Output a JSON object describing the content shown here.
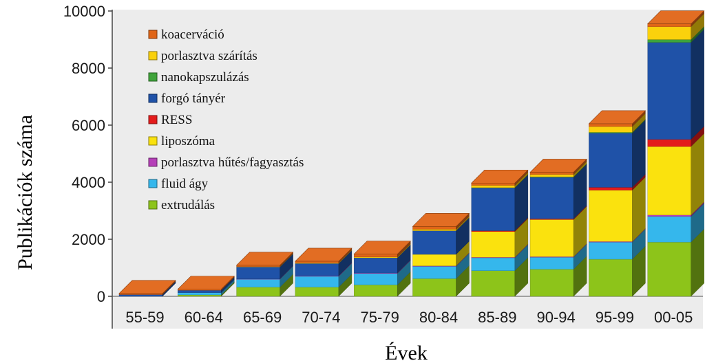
{
  "chart_data": {
    "type": "bar",
    "stacked": true,
    "style": "3d",
    "title": "",
    "xlabel": "Évek",
    "ylabel": "Publikációk száma",
    "ylim": [
      0,
      10000
    ],
    "yticks": [
      0,
      2000,
      4000,
      6000,
      8000,
      10000
    ],
    "legend_position": "top-left",
    "categories": [
      "55-59",
      "60-64",
      "65-69",
      "70-74",
      "75-79",
      "80-84",
      "85-89",
      "90-94",
      "95-99",
      "00-05"
    ],
    "series": [
      {
        "name": "extrudálás",
        "color": "#8dc41a",
        "values": [
          0,
          50,
          320,
          320,
          400,
          620,
          900,
          950,
          1300,
          1900
        ]
      },
      {
        "name": "fluid ágy",
        "color": "#35b7ec",
        "values": [
          0,
          80,
          280,
          380,
          400,
          430,
          450,
          420,
          600,
          900
        ]
      },
      {
        "name": "porlasztva hűtés/fagyasztás",
        "color": "#b53fb8",
        "values": [
          0,
          0,
          10,
          20,
          20,
          20,
          20,
          20,
          20,
          50
        ]
      },
      {
        "name": "liposzóma",
        "color": "#fae20e",
        "values": [
          0,
          0,
          0,
          0,
          0,
          400,
          900,
          1300,
          1800,
          2400
        ]
      },
      {
        "name": "RESS",
        "color": "#e41b1b",
        "values": [
          0,
          0,
          0,
          0,
          0,
          0,
          30,
          30,
          100,
          250
        ]
      },
      {
        "name": "forgó tányér",
        "color": "#1f52a8",
        "values": [
          60,
          80,
          420,
          430,
          530,
          830,
          1500,
          1450,
          1900,
          3400
        ]
      },
      {
        "name": "nanokapszulázás",
        "color": "#3fa43a",
        "values": [
          0,
          0,
          0,
          0,
          0,
          0,
          10,
          20,
          30,
          100
        ]
      },
      {
        "name": "porlasztva szárítás",
        "color": "#fad10c",
        "values": [
          0,
          0,
          10,
          20,
          30,
          50,
          80,
          80,
          200,
          450
        ]
      },
      {
        "name": "koacerváció",
        "color": "#e06517",
        "values": [
          40,
          40,
          50,
          60,
          100,
          100,
          80,
          80,
          100,
          100
        ]
      }
    ],
    "legend_order": [
      "koacerváció",
      "porlasztva szárítás",
      "nanokapszulázás",
      "forgó tányér",
      "RESS",
      "liposzóma",
      "porlasztva hűtés/fagyasztás",
      "fluid ágy",
      "extrudálás"
    ]
  }
}
